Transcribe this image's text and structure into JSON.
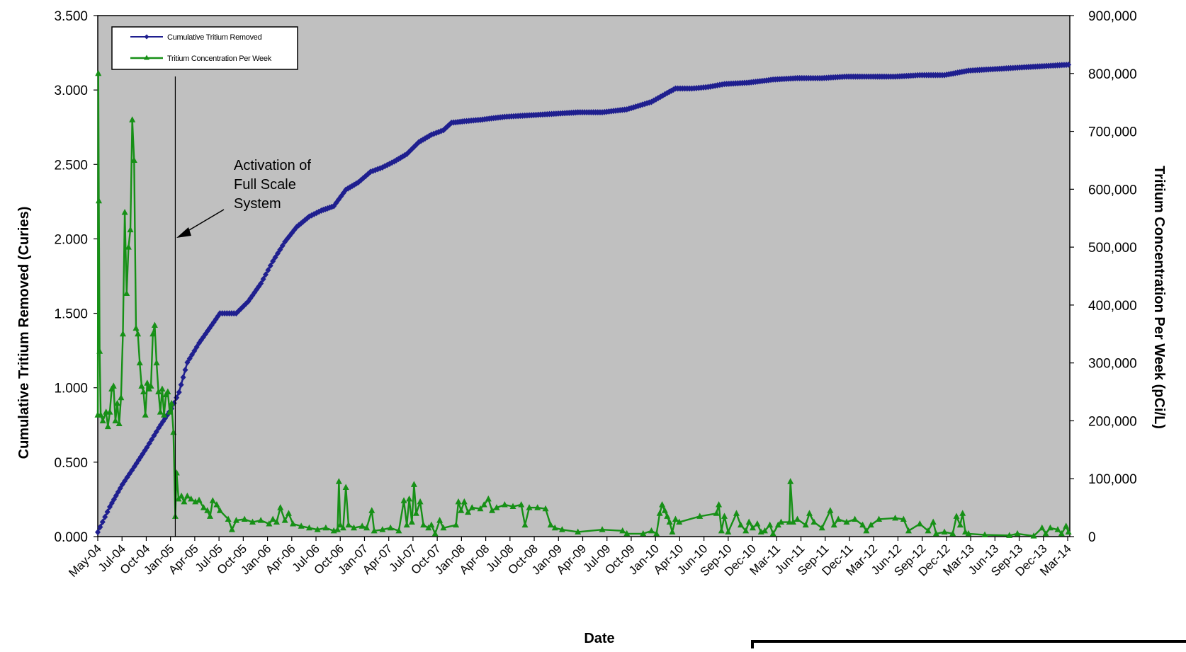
{
  "chart_data": {
    "type": "line",
    "x_axis": {
      "label": "Date",
      "ticks": [
        "May-04",
        "Jul-04",
        "Oct-04",
        "Jan-05",
        "Apr-05",
        "Jul-05",
        "Oct-05",
        "Jan-06",
        "Apr-06",
        "Jul-06",
        "Oct-06",
        "Jan-07",
        "Apr-07",
        "Jul-07",
        "Oct-07",
        "Jan-08",
        "Apr-08",
        "Jul-08",
        "Oct-08",
        "Jan-09",
        "Apr-09",
        "Jul-09",
        "Oct-09",
        "Jan-10",
        "Apr-10",
        "Jun-10",
        "Sep-10",
        "Dec-10",
        "Mar-11",
        "Jun-11",
        "Sep-11",
        "Dec-11",
        "Mar-12",
        "Jun-12",
        "Sep-12",
        "Dec-12",
        "Mar-13",
        "Jun-13",
        "Sep-13",
        "Dec-13",
        "Mar-14"
      ]
    },
    "y_left": {
      "label": "Cumulative Tritium Removed (Curies)",
      "ylim": [
        0,
        3.5
      ],
      "ticks": [
        "0.000",
        "0.500",
        "1.000",
        "1.500",
        "2.000",
        "2.500",
        "3.000",
        "3.500"
      ]
    },
    "y_right": {
      "label": "Tritium Concentration Per Week (pCi/L)",
      "ylim": [
        0,
        900000
      ],
      "ticks": [
        "0",
        "100,000",
        "200,000",
        "300,000",
        "400,000",
        "500,000",
        "600,000",
        "700,000",
        "800,000",
        "900,000"
      ]
    },
    "plot_background": "#c0c0c0",
    "grid": false,
    "legend": {
      "position": "top-left",
      "entries": [
        "Cumulative Tritium Removed",
        "Tritium Concentration Per Week"
      ]
    },
    "series": [
      {
        "name": "Cumulative Tritium Removed",
        "axis": "left",
        "color": "#1f1f8f",
        "marker": "diamond",
        "points": [
          [
            "2004-05-01",
            0.03
          ],
          [
            "2004-06-15",
            0.2
          ],
          [
            "2004-08-01",
            0.35
          ],
          [
            "2004-09-15",
            0.47
          ],
          [
            "2004-11-01",
            0.6
          ],
          [
            "2004-12-15",
            0.73
          ],
          [
            "2005-02-01",
            0.86
          ],
          [
            "2005-03-01",
            0.97
          ],
          [
            "2005-04-01",
            1.17
          ],
          [
            "2005-05-15",
            1.3
          ],
          [
            "2005-07-01",
            1.42
          ],
          [
            "2005-08-01",
            1.5
          ],
          [
            "2005-10-01",
            1.5
          ],
          [
            "2005-11-15",
            1.58
          ],
          [
            "2006-01-01",
            1.7
          ],
          [
            "2006-02-15",
            1.85
          ],
          [
            "2006-04-01",
            1.98
          ],
          [
            "2006-05-15",
            2.08
          ],
          [
            "2006-07-01",
            2.15
          ],
          [
            "2006-08-15",
            2.19
          ],
          [
            "2006-10-01",
            2.22
          ],
          [
            "2006-11-15",
            2.33
          ],
          [
            "2007-01-01",
            2.38
          ],
          [
            "2007-02-15",
            2.45
          ],
          [
            "2007-04-01",
            2.48
          ],
          [
            "2007-05-15",
            2.52
          ],
          [
            "2007-07-01",
            2.57
          ],
          [
            "2007-08-15",
            2.65
          ],
          [
            "2007-10-01",
            2.7
          ],
          [
            "2007-11-15",
            2.73
          ],
          [
            "2007-12-15",
            2.78
          ],
          [
            "2008-02-01",
            2.79
          ],
          [
            "2008-04-01",
            2.8
          ],
          [
            "2008-07-01",
            2.82
          ],
          [
            "2008-10-01",
            2.83
          ],
          [
            "2009-01-01",
            2.84
          ],
          [
            "2009-04-01",
            2.85
          ],
          [
            "2009-07-01",
            2.85
          ],
          [
            "2009-10-01",
            2.87
          ],
          [
            "2010-01-01",
            2.92
          ],
          [
            "2010-03-01",
            2.98
          ],
          [
            "2010-04-01",
            3.01
          ],
          [
            "2010-06-01",
            3.01
          ],
          [
            "2010-08-01",
            3.02
          ],
          [
            "2010-10-01",
            3.04
          ],
          [
            "2011-01-01",
            3.05
          ],
          [
            "2011-04-01",
            3.07
          ],
          [
            "2011-07-01",
            3.08
          ],
          [
            "2011-10-01",
            3.08
          ],
          [
            "2012-01-01",
            3.09
          ],
          [
            "2012-04-01",
            3.09
          ],
          [
            "2012-07-01",
            3.09
          ],
          [
            "2012-10-01",
            3.1
          ],
          [
            "2013-01-01",
            3.1
          ],
          [
            "2013-04-01",
            3.13
          ],
          [
            "2013-07-01",
            3.14
          ],
          [
            "2013-10-01",
            3.15
          ],
          [
            "2014-01-01",
            3.16
          ],
          [
            "2014-04-10",
            3.17
          ]
        ]
      },
      {
        "name": "Tritium Concentration Per Week",
        "axis": "right",
        "color": "#169016",
        "marker": "triangle",
        "points": [
          [
            "2004-05-01",
            210000
          ],
          [
            "2004-05-03",
            800000
          ],
          [
            "2004-05-05",
            580000
          ],
          [
            "2004-05-08",
            320000
          ],
          [
            "2004-05-12",
            210000
          ],
          [
            "2004-05-20",
            200000
          ],
          [
            "2004-06-01",
            215000
          ],
          [
            "2004-06-08",
            190000
          ],
          [
            "2004-06-15",
            215000
          ],
          [
            "2004-06-22",
            255000
          ],
          [
            "2004-06-29",
            260000
          ],
          [
            "2004-07-06",
            200000
          ],
          [
            "2004-07-13",
            230000
          ],
          [
            "2004-07-20",
            195000
          ],
          [
            "2004-07-27",
            240000
          ],
          [
            "2004-08-03",
            350000
          ],
          [
            "2004-08-10",
            560000
          ],
          [
            "2004-08-17",
            420000
          ],
          [
            "2004-08-24",
            500000
          ],
          [
            "2004-08-31",
            530000
          ],
          [
            "2004-09-07",
            720000
          ],
          [
            "2004-09-14",
            650000
          ],
          [
            "2004-09-21",
            360000
          ],
          [
            "2004-09-28",
            350000
          ],
          [
            "2004-10-05",
            300000
          ],
          [
            "2004-10-12",
            260000
          ],
          [
            "2004-10-19",
            250000
          ],
          [
            "2004-10-26",
            210000
          ],
          [
            "2004-11-02",
            265000
          ],
          [
            "2004-11-09",
            255000
          ],
          [
            "2004-11-16",
            260000
          ],
          [
            "2004-11-23",
            350000
          ],
          [
            "2004-11-30",
            365000
          ],
          [
            "2004-12-07",
            300000
          ],
          [
            "2004-12-14",
            250000
          ],
          [
            "2004-12-21",
            215000
          ],
          [
            "2004-12-28",
            255000
          ],
          [
            "2005-01-04",
            210000
          ],
          [
            "2005-01-11",
            245000
          ],
          [
            "2005-01-18",
            250000
          ],
          [
            "2005-01-25",
            215000
          ],
          [
            "2005-02-01",
            230000
          ],
          [
            "2005-02-08",
            180000
          ],
          [
            "2005-02-15",
            35000
          ],
          [
            "2005-02-20",
            110000
          ],
          [
            "2005-02-27",
            65000
          ],
          [
            "2005-03-10",
            70000
          ],
          [
            "2005-03-20",
            60000
          ],
          [
            "2005-04-01",
            70000
          ],
          [
            "2005-04-15",
            65000
          ],
          [
            "2005-05-01",
            60000
          ],
          [
            "2005-05-15",
            63000
          ],
          [
            "2005-06-01",
            50000
          ],
          [
            "2005-06-15",
            45000
          ],
          [
            "2005-06-25",
            35000
          ],
          [
            "2005-07-05",
            62000
          ],
          [
            "2005-07-20",
            55000
          ],
          [
            "2005-08-01",
            45000
          ],
          [
            "2005-09-01",
            30000
          ],
          [
            "2005-09-15",
            12000
          ],
          [
            "2005-10-01",
            28000
          ],
          [
            "2005-11-01",
            30000
          ],
          [
            "2005-12-01",
            25000
          ],
          [
            "2006-01-01",
            28000
          ],
          [
            "2006-02-01",
            22000
          ],
          [
            "2006-02-15",
            30000
          ],
          [
            "2006-03-01",
            25000
          ],
          [
            "2006-03-15",
            50000
          ],
          [
            "2006-04-01",
            28000
          ],
          [
            "2006-04-15",
            40000
          ],
          [
            "2006-05-01",
            22000
          ],
          [
            "2006-06-01",
            18000
          ],
          [
            "2006-07-01",
            15000
          ],
          [
            "2006-08-01",
            12000
          ],
          [
            "2006-09-01",
            15000
          ],
          [
            "2006-10-01",
            10000
          ],
          [
            "2006-10-15",
            12000
          ],
          [
            "2006-10-20",
            95000
          ],
          [
            "2006-10-25",
            20000
          ],
          [
            "2006-11-05",
            15000
          ],
          [
            "2006-11-15",
            85000
          ],
          [
            "2006-11-25",
            20000
          ],
          [
            "2006-12-15",
            15000
          ],
          [
            "2007-01-15",
            18000
          ],
          [
            "2007-02-01",
            15000
          ],
          [
            "2007-02-20",
            45000
          ],
          [
            "2007-03-01",
            10000
          ],
          [
            "2007-04-01",
            12000
          ],
          [
            "2007-05-01",
            15000
          ],
          [
            "2007-06-01",
            10000
          ],
          [
            "2007-06-20",
            62000
          ],
          [
            "2007-07-01",
            20000
          ],
          [
            "2007-07-10",
            65000
          ],
          [
            "2007-07-20",
            25000
          ],
          [
            "2007-07-28",
            90000
          ],
          [
            "2007-08-05",
            40000
          ],
          [
            "2007-08-20",
            60000
          ],
          [
            "2007-09-01",
            20000
          ],
          [
            "2007-09-20",
            15000
          ],
          [
            "2007-10-01",
            20000
          ],
          [
            "2007-10-15",
            5000
          ],
          [
            "2007-11-01",
            28000
          ],
          [
            "2007-11-15",
            15000
          ],
          [
            "2008-01-01",
            20000
          ],
          [
            "2008-01-10",
            60000
          ],
          [
            "2008-01-20",
            45000
          ],
          [
            "2008-02-01",
            60000
          ],
          [
            "2008-02-15",
            42000
          ],
          [
            "2008-03-01",
            50000
          ],
          [
            "2008-04-01",
            48000
          ],
          [
            "2008-04-15",
            55000
          ],
          [
            "2008-05-01",
            65000
          ],
          [
            "2008-05-15",
            45000
          ],
          [
            "2008-06-01",
            50000
          ],
          [
            "2008-07-01",
            55000
          ],
          [
            "2008-08-01",
            52000
          ],
          [
            "2008-09-01",
            55000
          ],
          [
            "2008-09-15",
            20000
          ],
          [
            "2008-10-01",
            50000
          ],
          [
            "2008-11-01",
            50000
          ],
          [
            "2008-12-01",
            48000
          ],
          [
            "2008-12-20",
            20000
          ],
          [
            "2009-01-05",
            15000
          ],
          [
            "2009-02-01",
            12000
          ],
          [
            "2009-04-01",
            8000
          ],
          [
            "2009-07-01",
            12000
          ],
          [
            "2009-09-15",
            10000
          ],
          [
            "2009-10-01",
            5000
          ],
          [
            "2009-12-01",
            5000
          ],
          [
            "2010-01-01",
            10000
          ],
          [
            "2010-01-20",
            5000
          ],
          [
            "2010-02-01",
            40000
          ],
          [
            "2010-02-10",
            55000
          ],
          [
            "2010-02-20",
            45000
          ],
          [
            "2010-03-01",
            35000
          ],
          [
            "2010-03-10",
            25000
          ],
          [
            "2010-03-20",
            8000
          ],
          [
            "2010-04-01",
            30000
          ],
          [
            "2010-04-15",
            25000
          ],
          [
            "2010-07-01",
            35000
          ],
          [
            "2010-09-01",
            40000
          ],
          [
            "2010-09-10",
            55000
          ],
          [
            "2010-09-20",
            10000
          ],
          [
            "2010-10-01",
            35000
          ],
          [
            "2010-10-15",
            8000
          ],
          [
            "2010-11-15",
            40000
          ],
          [
            "2010-12-01",
            20000
          ],
          [
            "2010-12-20",
            10000
          ],
          [
            "2011-01-01",
            25000
          ],
          [
            "2011-01-15",
            15000
          ],
          [
            "2011-02-01",
            22000
          ],
          [
            "2011-02-15",
            8000
          ],
          [
            "2011-03-01",
            10000
          ],
          [
            "2011-03-20",
            20000
          ],
          [
            "2011-04-01",
            5000
          ],
          [
            "2011-04-20",
            20000
          ],
          [
            "2011-05-01",
            25000
          ],
          [
            "2011-06-01",
            25000
          ],
          [
            "2011-06-05",
            95000
          ],
          [
            "2011-06-15",
            25000
          ],
          [
            "2011-07-01",
            30000
          ],
          [
            "2011-08-01",
            20000
          ],
          [
            "2011-08-15",
            40000
          ],
          [
            "2011-09-01",
            25000
          ],
          [
            "2011-10-01",
            15000
          ],
          [
            "2011-11-01",
            45000
          ],
          [
            "2011-11-15",
            20000
          ],
          [
            "2011-12-01",
            30000
          ],
          [
            "2012-01-01",
            25000
          ],
          [
            "2012-02-01",
            30000
          ],
          [
            "2012-03-01",
            20000
          ],
          [
            "2012-03-15",
            10000
          ],
          [
            "2012-04-01",
            20000
          ],
          [
            "2012-05-01",
            30000
          ],
          [
            "2012-07-01",
            32000
          ],
          [
            "2012-08-01",
            30000
          ],
          [
            "2012-08-20",
            10000
          ],
          [
            "2012-10-01",
            22000
          ],
          [
            "2012-11-01",
            10000
          ],
          [
            "2012-11-20",
            25000
          ],
          [
            "2012-12-01",
            5000
          ],
          [
            "2013-01-01",
            8000
          ],
          [
            "2013-02-01",
            5000
          ],
          [
            "2013-02-15",
            35000
          ],
          [
            "2013-03-01",
            20000
          ],
          [
            "2013-03-10",
            40000
          ],
          [
            "2013-03-20",
            8000
          ],
          [
            "2013-04-01",
            5000
          ],
          [
            "2013-06-01",
            3000
          ],
          [
            "2013-09-01",
            2000
          ],
          [
            "2013-10-01",
            5000
          ],
          [
            "2013-12-01",
            1000
          ],
          [
            "2014-01-01",
            15000
          ],
          [
            "2014-01-15",
            5000
          ],
          [
            "2014-02-01",
            15000
          ],
          [
            "2014-03-01",
            12000
          ],
          [
            "2014-03-15",
            5000
          ],
          [
            "2014-04-01",
            18000
          ],
          [
            "2014-04-10",
            8000
          ]
        ]
      }
    ],
    "annotations": [
      {
        "text_lines": [
          "Activation of",
          "Full Scale",
          "System"
        ],
        "date": "2005-02-15"
      }
    ]
  }
}
